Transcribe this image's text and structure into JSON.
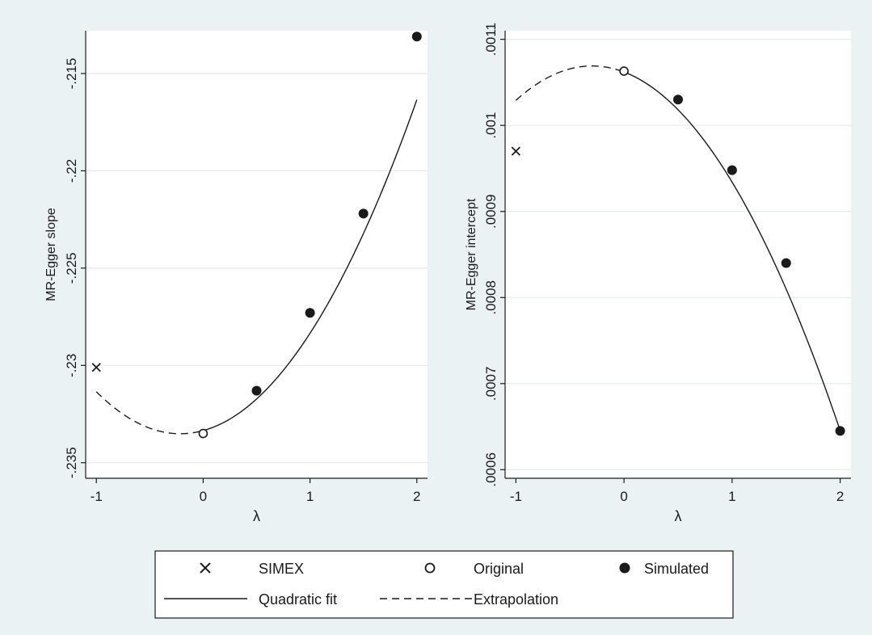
{
  "colors": {
    "background": "#eaf2f3",
    "plot_background": "#ffffff",
    "grid": "#e2ecee",
    "ink": "#1a1a1a"
  },
  "chart_data": [
    {
      "type": "line",
      "xlabel": "λ",
      "ylabel": "MR-Egger slope",
      "xlim": [
        -1.1,
        2.1
      ],
      "ylim": [
        -0.2358,
        -0.2128
      ],
      "xticks": [
        -1,
        0,
        1,
        2
      ],
      "xtick_labels": [
        "-1",
        "0",
        "1",
        "2"
      ],
      "yticks": [
        -0.235,
        -0.23,
        -0.225,
        -0.22,
        -0.215
      ],
      "ytick_labels": [
        "-.235",
        "-.23",
        "-.225",
        "-.22",
        "-.215"
      ],
      "grid": true,
      "simex": {
        "x": -1,
        "y": -0.2301
      },
      "original": {
        "x": 0,
        "y": -0.2335
      },
      "simulated": [
        {
          "x": 0.5,
          "y": -0.2313
        },
        {
          "x": 1.0,
          "y": -0.2273
        },
        {
          "x": 1.5,
          "y": -0.2222
        },
        {
          "x": 2.0,
          "y": -0.2131
        }
      ],
      "quadratic_fit": {
        "a": -0.23335,
        "b": 0.0015,
        "c": 0.0035
      }
    },
    {
      "type": "line",
      "xlabel": "λ",
      "ylabel": "MR-Egger intercept",
      "xlim": [
        -1.1,
        2.1
      ],
      "ylim": [
        0.00059,
        0.00111
      ],
      "xticks": [
        -1,
        0,
        1,
        2
      ],
      "xtick_labels": [
        "-1",
        "0",
        "1",
        "2"
      ],
      "yticks": [
        0.0006,
        0.0007,
        0.0008,
        0.0009,
        0.001,
        0.0011
      ],
      "ytick_labels": [
        ".0006",
        ".0007",
        ".0008",
        ".0009",
        ".001",
        ".0011"
      ],
      "grid": true,
      "simex": {
        "x": -1,
        "y": 0.00097
      },
      "original": {
        "x": 0,
        "y": 0.001063
      },
      "simulated": [
        {
          "x": 0.5,
          "y": 0.00103
        },
        {
          "x": 1.0,
          "y": 0.000948
        },
        {
          "x": 1.5,
          "y": 0.00084
        },
        {
          "x": 2.0,
          "y": 0.000645
        }
      ],
      "quadratic_fit": {
        "a": 0.001062,
        "b": -4.75e-05,
        "c": -8.04e-05
      }
    }
  ],
  "legend": {
    "placement": "bottom",
    "items": [
      {
        "symbol": "cross",
        "label": "SIMEX"
      },
      {
        "symbol": "hollow-circle",
        "label": "Original"
      },
      {
        "symbol": "filled-circle",
        "label": "Simulated"
      },
      {
        "symbol": "solid-line",
        "label": "Quadratic fit"
      },
      {
        "symbol": "dashed-line",
        "label": "Extrapolation"
      }
    ]
  }
}
